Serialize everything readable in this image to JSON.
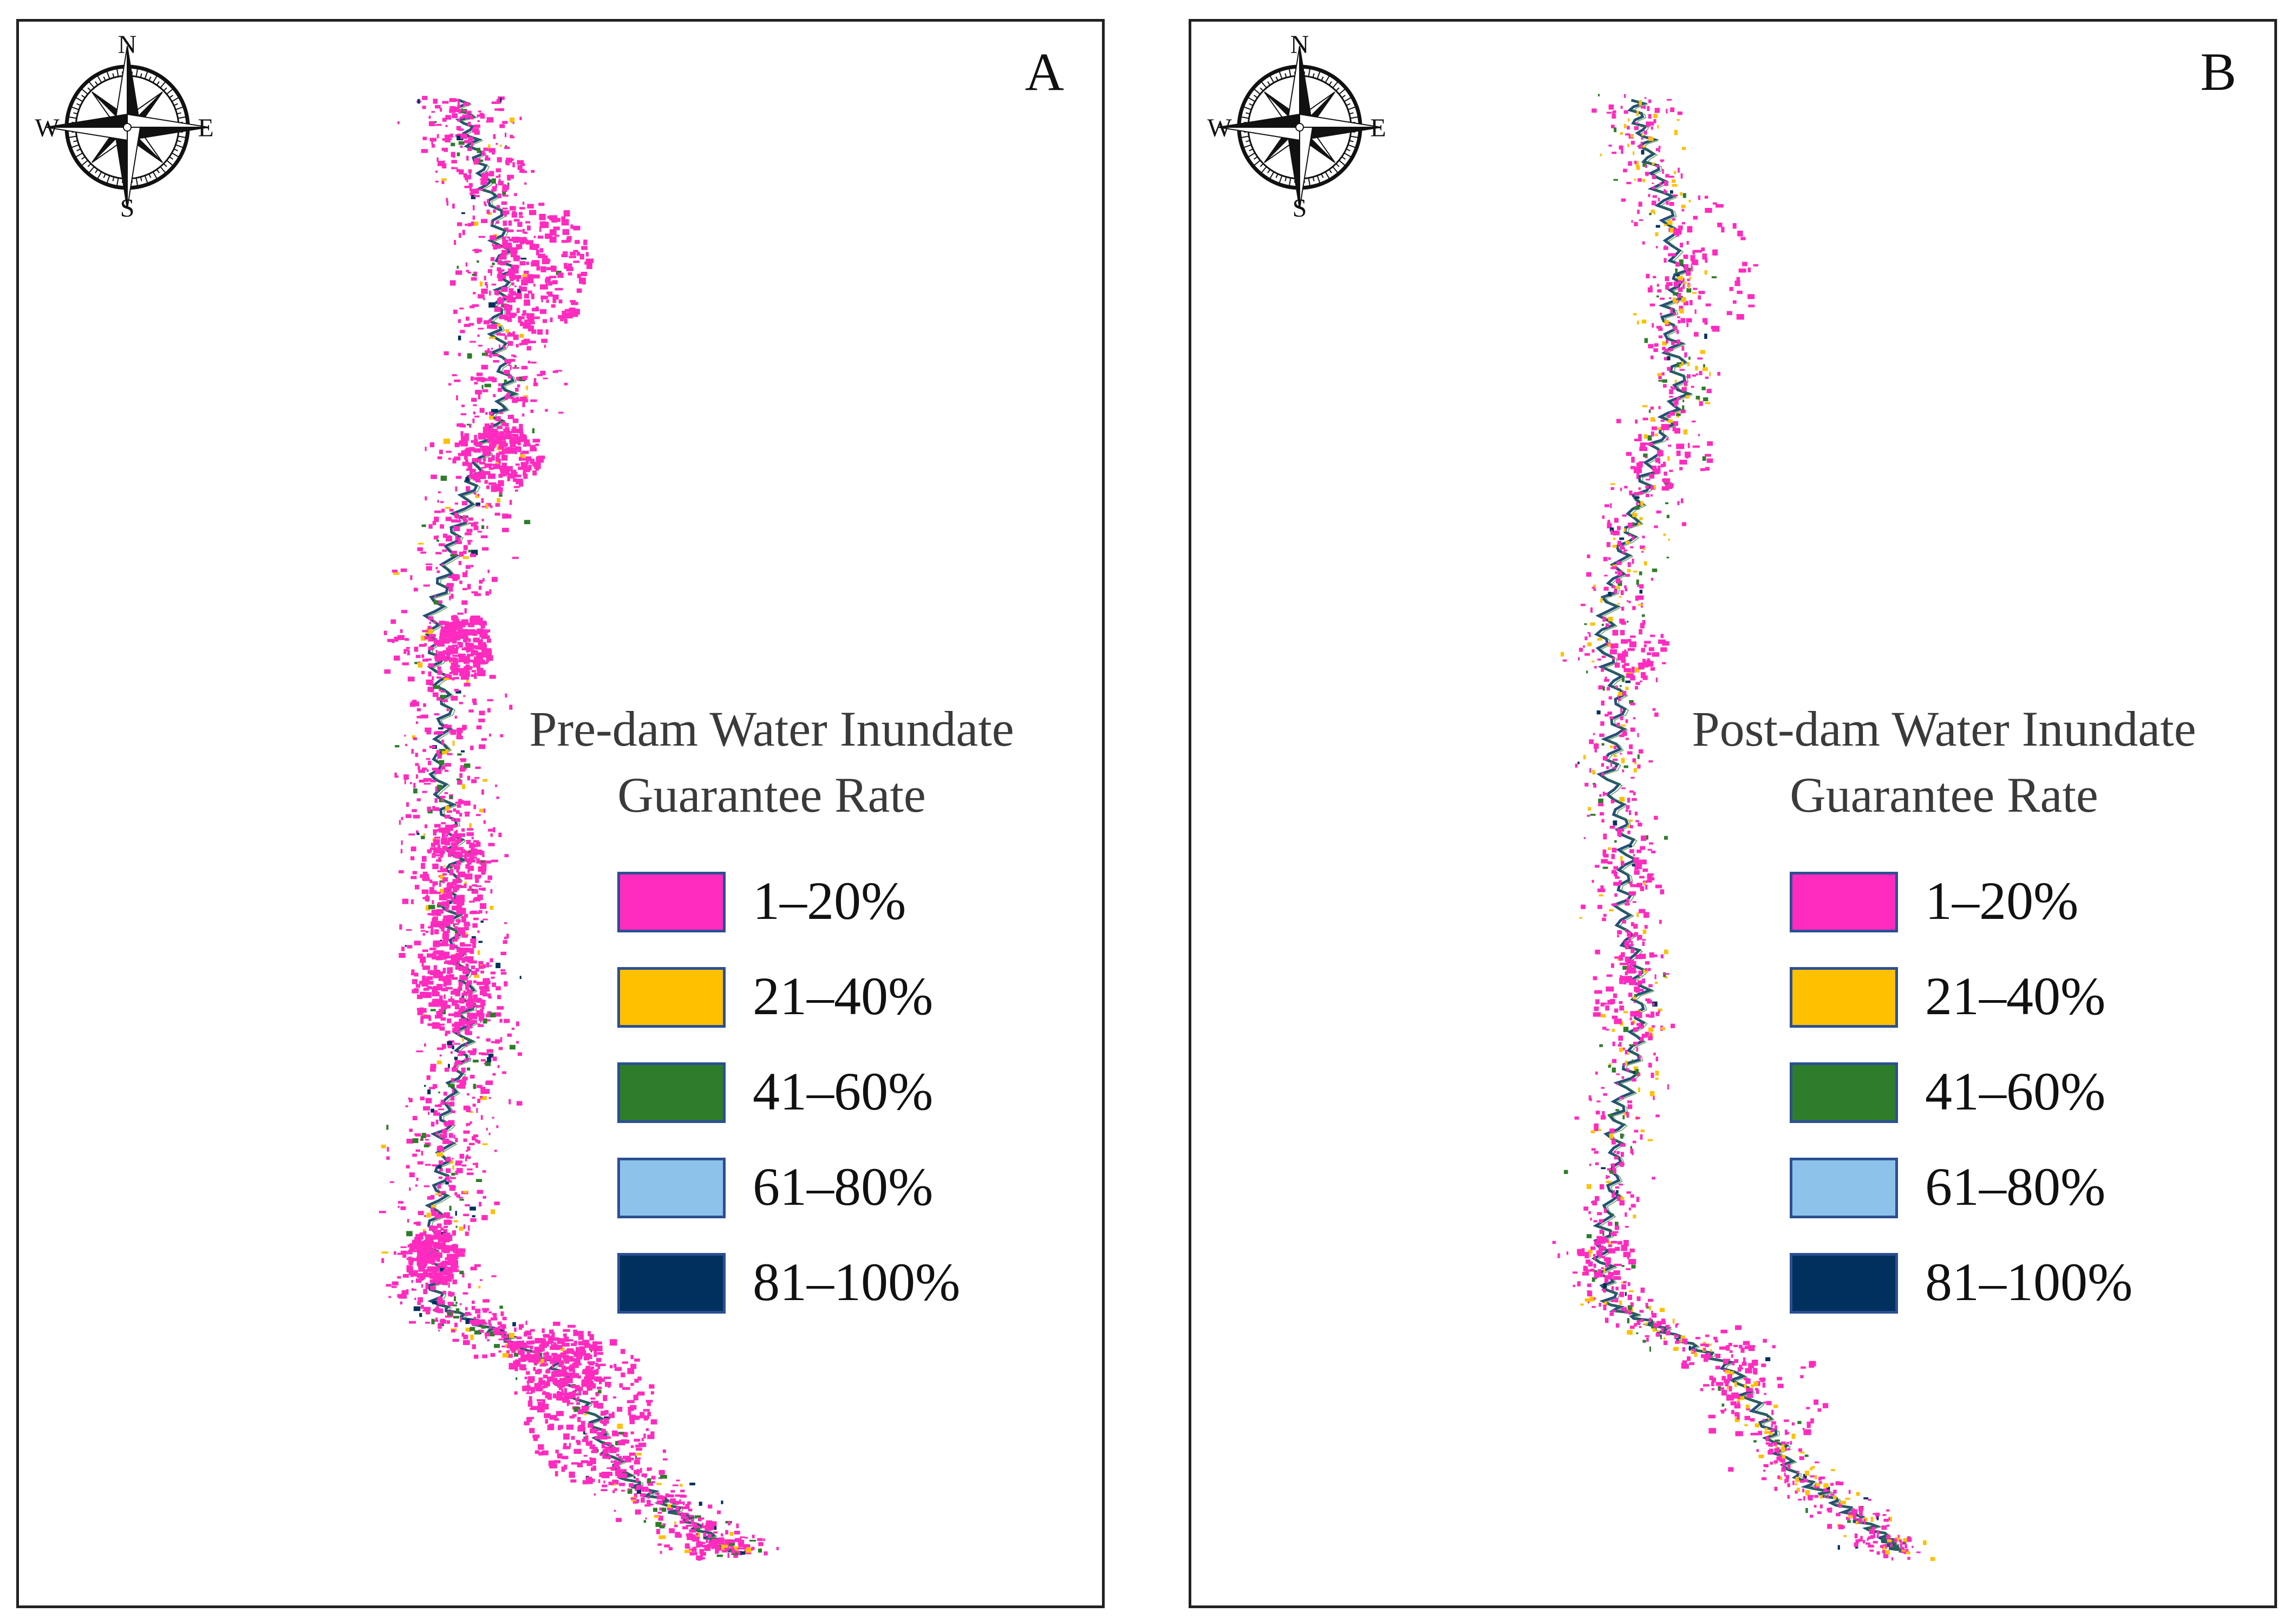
{
  "compass": {
    "n": "N",
    "s": "S",
    "e": "E",
    "w": "W"
  },
  "legend_colors": [
    "#ff2bbf",
    "#ffc000",
    "#2e7d2a",
    "#8dc3ea",
    "#00315e"
  ],
  "panels": [
    {
      "letter": "A",
      "legend_title_line1": "Pre-dam Water Inundate",
      "legend_title_line2": "Guarantee Rate",
      "legend": [
        {
          "label": "1–20%",
          "color": "#ff2bbf"
        },
        {
          "label": "21–40%",
          "color": "#ffc000"
        },
        {
          "label": "41–60%",
          "color": "#2e7d2a"
        },
        {
          "label": "61–80%",
          "color": "#8dc3ea"
        },
        {
          "label": "81–100%",
          "color": "#00315e"
        }
      ]
    },
    {
      "letter": "B",
      "legend_title_line1": "Post-dam Water Inundate",
      "legend_title_line2": "Guarantee Rate",
      "legend": [
        {
          "label": "1–20%",
          "color": "#ff2bbf"
        },
        {
          "label": "21–40%",
          "color": "#ffc000"
        },
        {
          "label": "41–60%",
          "color": "#2e7d2a"
        },
        {
          "label": "61–80%",
          "color": "#8dc3ea"
        },
        {
          "label": "81–100%",
          "color": "#00315e"
        }
      ]
    }
  ]
}
